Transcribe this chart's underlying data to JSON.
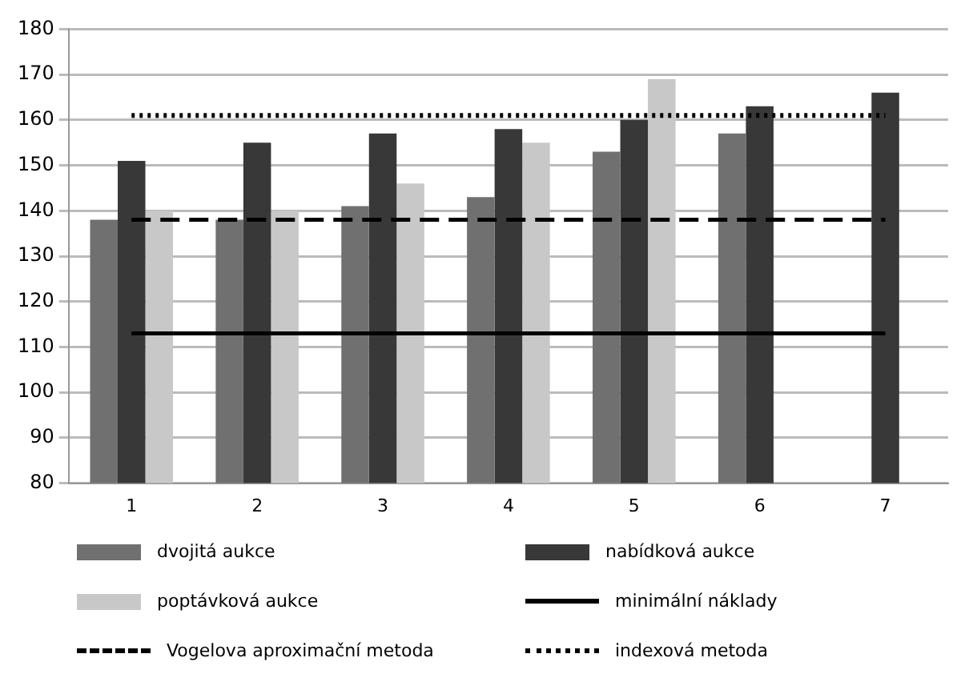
{
  "chart_data": {
    "type": "bar",
    "categories": [
      "1",
      "2",
      "3",
      "4",
      "5",
      "6",
      "7"
    ],
    "series": [
      {
        "name": "dvojitá aukce",
        "color": "#707070",
        "values": [
          138,
          138,
          141,
          143,
          153,
          157,
          null
        ]
      },
      {
        "name": "nabídková aukce",
        "color": "#383838",
        "values": [
          151,
          155,
          157,
          158,
          160,
          163,
          166
        ]
      },
      {
        "name": "poptávková aukce",
        "color": "#c8c8c8",
        "values": [
          140,
          140,
          146,
          155,
          169,
          null,
          null
        ]
      },
      {
        "name": "minimální náklady",
        "type": "line",
        "color": "#000000",
        "line_style": "solid",
        "values": [
          113,
          113,
          113,
          113,
          113,
          113,
          113
        ]
      },
      {
        "name": "Vogelova aproximační metoda",
        "type": "line",
        "color": "#000000",
        "line_style": "dashed",
        "values": [
          138,
          138,
          138,
          138,
          138,
          138,
          138
        ]
      },
      {
        "name": "indexová metoda",
        "type": "line",
        "color": "#000000",
        "line_style": "dotted",
        "values": [
          161,
          161,
          161,
          161,
          161,
          161,
          161
        ]
      }
    ],
    "ylim": [
      80,
      180
    ],
    "yticks": [
      80,
      90,
      100,
      110,
      120,
      130,
      140,
      150,
      160,
      170,
      180
    ],
    "grid": "y",
    "legend": "bottom",
    "marker": "none"
  }
}
